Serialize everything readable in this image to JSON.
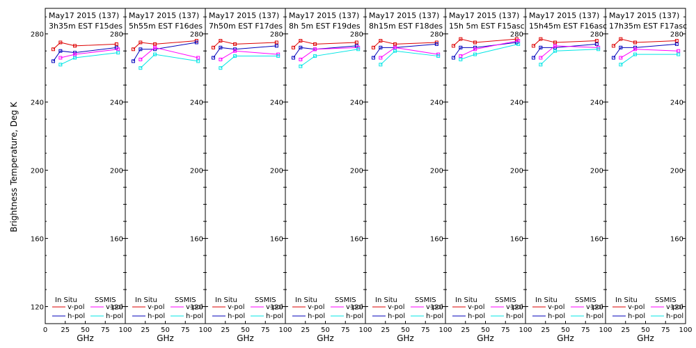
{
  "chart_data": {
    "type": "line",
    "ylabel": "Brightness Temperature, Deg K",
    "xlabel": "GHz",
    "ylim": [
      110,
      295
    ],
    "yticks": [
      120,
      160,
      200,
      240,
      280
    ],
    "xlim": [
      0,
      100
    ],
    "xticks": [
      0,
      25,
      50,
      75,
      100
    ],
    "xtick_labels": [
      "0",
      "25",
      "50",
      "75",
      "100"
    ],
    "xtick_labels_short": [
      "",
      "25",
      "50",
      "75",
      "100"
    ],
    "colors": {
      "in_situ_v": "#dd0000",
      "in_situ_h": "#0000bb",
      "ssmis_v": "#ff00ff",
      "ssmis_h": "#00e5e5"
    },
    "legend": {
      "in_situ_title": "In Situ",
      "ssmis_title": "SSMIS",
      "v_label": "v-pol",
      "h_label": "h-pol"
    },
    "panels": [
      {
        "title": "May17 2015 (137)",
        "subtitle": "3h35m  EST  F15des",
        "in_situ_v": {
          "x": [
            10,
            19,
            37,
            89
          ],
          "y": [
            271,
            275,
            273,
            274
          ]
        },
        "in_situ_h": {
          "x": [
            10,
            19,
            37,
            89
          ],
          "y": [
            264,
            270,
            269,
            272
          ]
        },
        "ssmis_v": {
          "x": [
            19,
            37,
            91
          ],
          "y": [
            266,
            268,
            271
          ]
        },
        "ssmis_h": {
          "x": [
            19,
            37,
            91
          ],
          "y": [
            262,
            266,
            269
          ]
        }
      },
      {
        "title": "May17 2015 (137)",
        "subtitle": "5h55m  EST  F16des",
        "in_situ_v": {
          "x": [
            10,
            19,
            37,
            89
          ],
          "y": [
            271,
            275,
            274,
            276
          ]
        },
        "in_situ_h": {
          "x": [
            10,
            19,
            37,
            89
          ],
          "y": [
            264,
            271,
            271,
            275
          ]
        },
        "ssmis_v": {
          "x": [
            19,
            37,
            91
          ],
          "y": [
            265,
            272,
            266
          ]
        },
        "ssmis_h": {
          "x": [
            19,
            37,
            91
          ],
          "y": [
            260,
            268,
            264
          ]
        }
      },
      {
        "title": "May17 2015 (137)",
        "subtitle": "7h50m  EST  F17des",
        "in_situ_v": {
          "x": [
            10,
            19,
            37,
            89
          ],
          "y": [
            272,
            276,
            274,
            275
          ]
        },
        "in_situ_h": {
          "x": [
            10,
            19,
            37,
            89
          ],
          "y": [
            266,
            272,
            271,
            273
          ]
        },
        "ssmis_v": {
          "x": [
            19,
            37,
            91
          ],
          "y": [
            265,
            270,
            268
          ]
        },
        "ssmis_h": {
          "x": [
            19,
            37,
            91
          ],
          "y": [
            260,
            267,
            267
          ]
        }
      },
      {
        "title": "May17 2015 (137)",
        "subtitle": "8h 5m  EST  F19des",
        "in_situ_v": {
          "x": [
            10,
            19,
            37,
            89
          ],
          "y": [
            272,
            276,
            274,
            275
          ]
        },
        "in_situ_h": {
          "x": [
            10,
            19,
            37,
            89
          ],
          "y": [
            266,
            272,
            271,
            273
          ]
        },
        "ssmis_v": {
          "x": [
            19,
            37,
            91
          ],
          "y": [
            265,
            271,
            272
          ]
        },
        "ssmis_h": {
          "x": [
            19,
            37,
            91
          ],
          "y": [
            261,
            267,
            271
          ]
        }
      },
      {
        "title": "May17 2015 (137)",
        "subtitle": "8h15m  EST  F18des",
        "in_situ_v": {
          "x": [
            10,
            19,
            37,
            89
          ],
          "y": [
            272,
            276,
            274,
            275
          ]
        },
        "in_situ_h": {
          "x": [
            10,
            19,
            37,
            89
          ],
          "y": [
            266,
            272,
            272,
            274
          ]
        },
        "ssmis_v": {
          "x": [
            19,
            37,
            91
          ],
          "y": [
            266,
            272,
            268
          ]
        },
        "ssmis_h": {
          "x": [
            19,
            37,
            91
          ],
          "y": [
            262,
            270,
            267
          ]
        }
      },
      {
        "title": "May17 2015 (137)",
        "subtitle": "15h 5m  EST  F15asc",
        "in_situ_v": {
          "x": [
            10,
            19,
            37,
            89
          ],
          "y": [
            273,
            277,
            275,
            277
          ]
        },
        "in_situ_h": {
          "x": [
            10,
            19,
            37,
            89
          ],
          "y": [
            266,
            272,
            272,
            275
          ]
        },
        "ssmis_v": {
          "x": [
            19,
            37,
            91
          ],
          "y": [
            267,
            271,
            276
          ]
        },
        "ssmis_h": {
          "x": [
            19,
            37,
            91
          ],
          "y": [
            265,
            268,
            274
          ]
        }
      },
      {
        "title": "May17 2015 (137)",
        "subtitle": "15h45m  EST  F16asc",
        "in_situ_v": {
          "x": [
            10,
            19,
            37,
            89
          ],
          "y": [
            273,
            277,
            275,
            276
          ]
        },
        "in_situ_h": {
          "x": [
            10,
            19,
            37,
            89
          ],
          "y": [
            266,
            272,
            272,
            274
          ]
        },
        "ssmis_v": {
          "x": [
            19,
            37,
            91
          ],
          "y": [
            266,
            273,
            272
          ]
        },
        "ssmis_h": {
          "x": [
            19,
            37,
            91
          ],
          "y": [
            262,
            270,
            271
          ]
        }
      },
      {
        "title": "May17 2015 (137)",
        "subtitle": "17h35m  EST  F17asc",
        "in_situ_v": {
          "x": [
            10,
            19,
            37,
            89
          ],
          "y": [
            273,
            277,
            275,
            276
          ]
        },
        "in_situ_h": {
          "x": [
            10,
            19,
            37,
            89
          ],
          "y": [
            266,
            272,
            272,
            274
          ]
        },
        "ssmis_v": {
          "x": [
            19,
            37,
            91
          ],
          "y": [
            266,
            271,
            270
          ]
        },
        "ssmis_h": {
          "x": [
            19,
            37,
            91
          ],
          "y": [
            262,
            268,
            268
          ]
        }
      }
    ]
  }
}
